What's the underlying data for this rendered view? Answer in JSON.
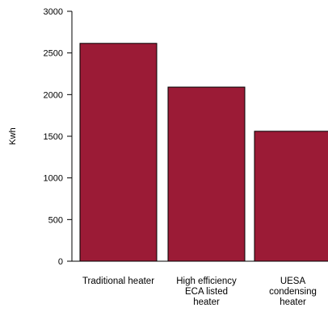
{
  "chart_data": {
    "type": "bar",
    "title": "",
    "xlabel": "",
    "ylabel": "Kwh",
    "ylim": [
      0,
      3000
    ],
    "yticks": [
      0,
      500,
      1000,
      1500,
      2000,
      2500,
      3000
    ],
    "categories": [
      [
        "Traditional heater"
      ],
      [
        "High efficiency",
        "ECA listed",
        "heater"
      ],
      [
        "UESA",
        "condensing",
        "heater"
      ]
    ],
    "values": [
      2615,
      2090,
      1560
    ],
    "bar_color": "#9b1b36",
    "grid": false,
    "legend": "none"
  }
}
